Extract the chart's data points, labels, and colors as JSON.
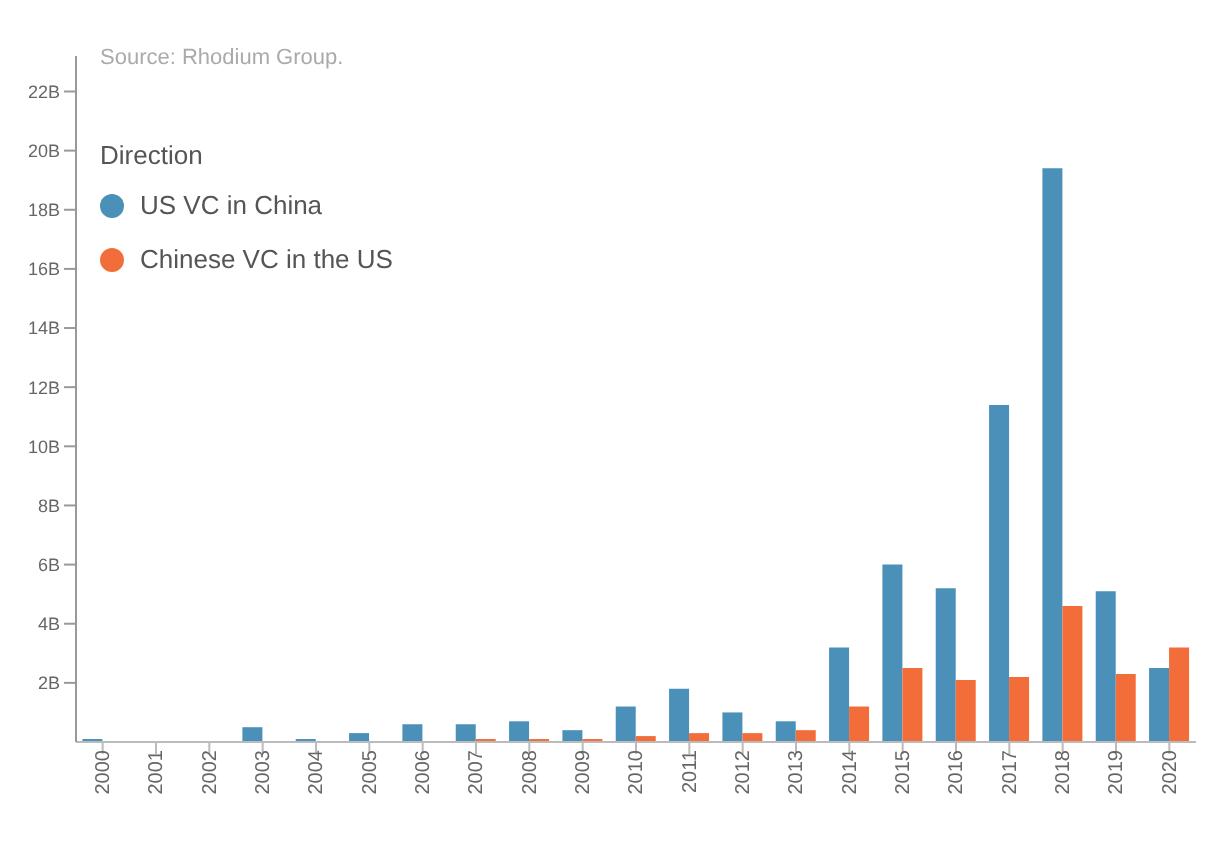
{
  "chart_data": {
    "type": "bar",
    "annotations": [
      "Source: Rhodium Group."
    ],
    "legend_title": "Direction",
    "legend": "top left",
    "grid": false,
    "categories": [
      "2000",
      "2001",
      "2002",
      "2003",
      "2004",
      "2005",
      "2006",
      "2007",
      "2008",
      "2009",
      "2010",
      "2011",
      "2012",
      "2013",
      "2014",
      "2015",
      "2016",
      "2017",
      "2018",
      "2019",
      "2020"
    ],
    "series": [
      {
        "name": "US VC in China",
        "color": "#4a90b9",
        "values": [
          0.1,
          0,
          0,
          0.5,
          0.1,
          0.3,
          0.6,
          0.6,
          0.7,
          0.4,
          1.2,
          1.8,
          1.0,
          0.7,
          3.2,
          6.0,
          5.2,
          11.4,
          19.4,
          5.1,
          2.5
        ]
      },
      {
        "name": "Chinese VC in the US",
        "color": "#f26d3a",
        "values": [
          0,
          0,
          0,
          0,
          0,
          0,
          0,
          0.1,
          0.1,
          0.1,
          0.2,
          0.3,
          0.3,
          0.4,
          1.2,
          2.5,
          2.1,
          2.2,
          4.6,
          2.3,
          3.2
        ]
      }
    ],
    "ylim": [
      0,
      23.2
    ],
    "yticks": [
      {
        "value": 2,
        "label": "2B"
      },
      {
        "value": 4,
        "label": "4B"
      },
      {
        "value": 6,
        "label": "6B"
      },
      {
        "value": 8,
        "label": "8B"
      },
      {
        "value": 10,
        "label": "10B"
      },
      {
        "value": 12,
        "label": "12B"
      },
      {
        "value": 14,
        "label": "14B"
      },
      {
        "value": 16,
        "label": "16B"
      },
      {
        "value": 18,
        "label": "18B"
      },
      {
        "value": 20,
        "label": "20B"
      },
      {
        "value": 22,
        "label": "22B"
      }
    ]
  }
}
